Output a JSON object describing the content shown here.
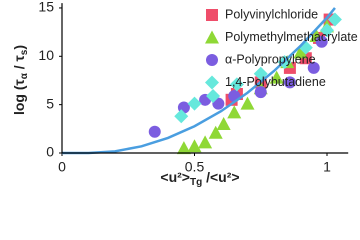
{
  "chart_data": {
    "type": "scatter",
    "ylabel": [
      "log (τ",
      "α",
      " / τ",
      "s",
      ")"
    ],
    "xlabel": [
      "<u²>",
      "Tg",
      " /<u²>"
    ],
    "xlim": [
      0,
      1.08
    ],
    "ylim": [
      0,
      15.5
    ],
    "xticks": [
      0,
      0.5,
      1
    ],
    "yticks": [
      0,
      5,
      10,
      15
    ],
    "legend": "upper right",
    "series": [
      {
        "name": "Polyvinylchloride",
        "color": "#ef4d6a",
        "marker": "square",
        "x": [
          0.64,
          0.66,
          0.75,
          0.86,
          0.92,
          0.97,
          1.01
        ],
        "values": [
          5.5,
          6.1,
          7.3,
          8.8,
          9.8,
          11.9,
          13.8
        ]
      },
      {
        "name": "Polymethylmethacrylate",
        "color": "#8fd836",
        "marker": "triangle",
        "x": [
          0.46,
          0.5,
          0.54,
          0.58,
          0.61,
          0.65,
          0.7,
          0.75,
          0.81,
          0.85,
          0.9,
          0.96,
          1.0
        ],
        "values": [
          0.5,
          0.7,
          1.1,
          2.1,
          3,
          4.2,
          5.1,
          6.7,
          7.8,
          9.4,
          10.4,
          12.1,
          13.1
        ]
      },
      {
        "name": "α-Polypropylene",
        "color": "#7b5de0",
        "marker": "circle",
        "x": [
          0.35,
          0.46,
          0.54,
          0.59,
          0.65,
          0.75,
          0.86,
          0.95,
          0.98
        ],
        "values": [
          2.2,
          4.7,
          5.5,
          5.1,
          5.9,
          6.3,
          7.3,
          8.8,
          11.5
        ]
      },
      {
        "name": "1,4-Polybutadiene",
        "color": "#66e8dc",
        "marker": "diamond",
        "x": [
          0.45,
          0.5,
          0.57,
          0.66,
          0.75,
          0.84,
          0.92,
          1.0,
          1.03
        ],
        "values": [
          3.8,
          5.1,
          5.9,
          7.1,
          8.2,
          9.4,
          10.9,
          12.7,
          13.8
        ]
      },
      {
        "color": "#4a9ee0",
        "marker": "line",
        "x": [
          0,
          0.1,
          0.2,
          0.3,
          0.4,
          0.5,
          0.6,
          0.7,
          0.8,
          0.9,
          1.0,
          1.03
        ],
        "values": [
          0,
          0,
          0.17,
          0.69,
          1.56,
          2.77,
          4.32,
          6.23,
          8.48,
          11.07,
          14.0,
          15.0
        ]
      }
    ]
  }
}
